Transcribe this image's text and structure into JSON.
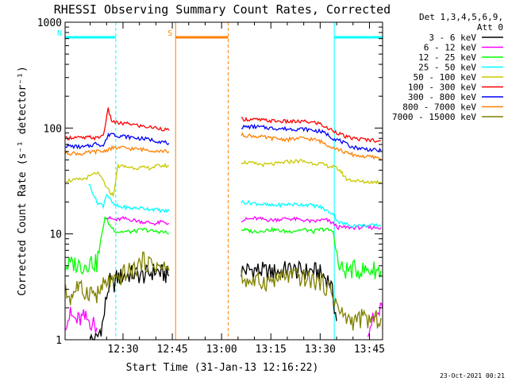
{
  "chart_data": {
    "type": "line",
    "title": "RHESSI Observing Summary Count Rates, Corrected",
    "xlabel": "Start Time (31-Jan-13 12:16:22)",
    "ylabel": "Corrected Count Rate (s⁻¹ detector⁻¹)",
    "yscale": "log",
    "ylim": [
      1,
      1000
    ],
    "xlim_minutes": [
      12.37,
      109.0
    ],
    "x_ticks": [
      {
        "label": "12:30",
        "minutes": 30
      },
      {
        "label": "12:45",
        "minutes": 45
      },
      {
        "label": "13:00",
        "minutes": 60
      },
      {
        "label": "13:15",
        "minutes": 75
      },
      {
        "label": "13:30",
        "minutes": 90
      },
      {
        "label": "13:45",
        "minutes": 105
      }
    ],
    "y_ticks": [
      {
        "label": "1",
        "value": 1
      },
      {
        "label": "10",
        "value": 10
      },
      {
        "label": "100",
        "value": 100
      },
      {
        "label": "1000",
        "value": 1000
      }
    ],
    "legend_header": [
      "Det 1,3,4,5,6,9,",
      "Att 0"
    ],
    "legend_position": "right",
    "grid": false,
    "flags": [
      {
        "label": "N",
        "color": "#00ffff",
        "start": 12.37,
        "end": 27.8
      },
      {
        "label": "",
        "color": "#00ffff",
        "start": 94.3,
        "end": 109.0
      },
      {
        "label": "S",
        "color": "#ff8000",
        "start": 46.0,
        "end": 62.0
      }
    ],
    "markers": [
      {
        "minute": 12.37,
        "color": "#00ffff",
        "style": "solid"
      },
      {
        "minute": 27.8,
        "color": "#00ffff",
        "style": "dashed"
      },
      {
        "minute": 46.0,
        "color": "#ff8000",
        "style": "solid"
      },
      {
        "minute": 62.0,
        "color": "#ff8000",
        "style": "dashed"
      },
      {
        "minute": 94.3,
        "color": "#00ffff",
        "style": "solid"
      },
      {
        "minute": 109.0,
        "color": "#00ffff",
        "style": "dashed"
      }
    ],
    "series": [
      {
        "name": "3 - 6 keV",
        "color": "#000000",
        "segments": [
          {
            "x": [
              20,
              22,
              24,
              25,
              26,
              27,
              28,
              30,
              33,
              36,
              40,
              42,
              44
            ],
            "y": [
              1,
              1,
              1.5,
              2.6,
              3.5,
              3.2,
              3.8,
              4,
              4.2,
              4,
              4.5,
              4.2,
              4
            ]
          },
          {
            "x": [
              66,
              70,
              75,
              80,
              85,
              88,
              90,
              92,
              93,
              94,
              95
            ],
            "y": [
              4.5,
              4.6,
              4.3,
              4.6,
              4.4,
              4.5,
              4.2,
              3.8,
              3.5,
              2.5,
              1.5
            ]
          }
        ]
      },
      {
        "name": "6 - 12 keV",
        "color": "#ff00ff",
        "segments": [
          {
            "x": [
              12.5,
              14,
              16,
              18,
              20,
              21,
              22
            ],
            "y": [
              1.5,
              1.7,
              1.5,
              1.6,
              1.5,
              1.4,
              1.3
            ]
          },
          {
            "x": [
              24.5,
              26,
              28,
              30,
              33,
              36,
              40,
              42,
              44
            ],
            "y": [
              14.5,
              14,
              13.5,
              14,
              13.5,
              13,
              12.5,
              13,
              12.5
            ]
          },
          {
            "x": [
              66,
              70,
              75,
              80,
              85,
              88,
              90,
              92,
              94,
              95.5,
              97,
              100,
              103,
              106,
              108.5
            ],
            "y": [
              13.5,
              14,
              13.5,
              14,
              13.5,
              13,
              13.5,
              13.5,
              12.5,
              11.5,
              11.5,
              11.5,
              11.5,
              11.5,
              11.5
            ]
          },
          {
            "x": [
              104.5,
              106,
              108,
              109
            ],
            "y": [
              1.3,
              1.5,
              1.8,
              2
            ]
          }
        ]
      },
      {
        "name": "12 - 25 keV",
        "color": "#00ff00",
        "segments": [
          {
            "x": [
              12.5,
              15,
              18,
              20,
              22,
              24.5,
              26,
              28,
              30,
              33,
              36,
              40,
              42,
              44
            ],
            "y": [
              5,
              5.2,
              5,
              5.5,
              5.2,
              14.5,
              12,
              10.5,
              10.5,
              10.5,
              11,
              10.5,
              10.5,
              10
            ]
          },
          {
            "x": [
              66,
              70,
              75,
              80,
              85,
              88,
              90,
              92,
              94,
              95.5,
              97,
              100,
              103,
              106,
              108.5
            ],
            "y": [
              11,
              10.5,
              11,
              10.5,
              11,
              10.5,
              11,
              11,
              10.5,
              5,
              4.5,
              4.6,
              4.5,
              4.6,
              4.5
            ]
          }
        ]
      },
      {
        "name": "25 - 50 keV",
        "color": "#00ffff",
        "segments": [
          {
            "x": [
              19.5,
              21,
              22,
              24,
              25,
              27,
              29,
              33,
              36,
              40,
              42,
              44
            ],
            "y": [
              30,
              24,
              20,
              18.5,
              24,
              19,
              18,
              17.5,
              17.5,
              17,
              16.5,
              16.5
            ]
          },
          {
            "x": [
              66,
              70,
              75,
              80,
              85,
              88,
              90,
              92,
              94,
              95.5,
              97,
              100,
              103,
              106,
              108.5
            ],
            "y": [
              20,
              19.5,
              18.5,
              19,
              19,
              18.5,
              18,
              16.5,
              15.5,
              13,
              12.5,
              12,
              12,
              12,
              12
            ]
          }
        ]
      },
      {
        "name": "50 - 100 keV",
        "color": "#c8c800",
        "segments": [
          {
            "x": [
              12.5,
              15,
              18,
              20,
              22,
              24,
              25,
              27,
              28.5,
              31,
              35,
              38,
              41,
              44
            ],
            "y": [
              32,
              32,
              33,
              35,
              38,
              32,
              27,
              23,
              44,
              43,
              42,
              42,
              44,
              44
            ]
          },
          {
            "x": [
              66,
              70,
              73,
              77,
              80,
              84,
              87,
              90,
              92,
              94,
              96,
              98,
              100,
              103,
              106,
              108.5
            ],
            "y": [
              48,
              46,
              45,
              46,
              48,
              49,
              47,
              46,
              44,
              43,
              40,
              33,
              32,
              31,
              31,
              31
            ]
          }
        ]
      },
      {
        "name": "100 - 300 keV",
        "color": "#ff0000",
        "segments": [
          {
            "x": [
              12.5,
              15,
              18,
              20,
              22,
              24,
              25.5,
              26.5,
              28,
              30,
              32,
              35,
              38,
              41,
              44
            ],
            "y": [
              80,
              82,
              80,
              82,
              80,
              86,
              150,
              118,
              112,
              110,
              110,
              105,
              102,
              100,
              95
            ]
          },
          {
            "x": [
              66,
              70,
              75,
              80,
              85,
              88,
              90,
              92,
              94,
              96,
              98,
              100,
              103,
              106,
              108.5
            ],
            "y": [
              122,
              120,
              117,
              115,
              115,
              113,
              110,
              100,
              95,
              88,
              82,
              80,
              78,
              77,
              76
            ]
          }
        ]
      },
      {
        "name": "300 - 800 keV",
        "color": "#0000ff",
        "segments": [
          {
            "x": [
              12.5,
              15,
              18,
              20,
              22,
              24,
              25.5,
              26.5,
              28,
              30,
              32,
              35,
              38,
              41,
              44
            ],
            "y": [
              68,
              67,
              66,
              68,
              72,
              68,
              85,
              90,
              85,
              84,
              82,
              80,
              78,
              75,
              72
            ]
          },
          {
            "x": [
              66,
              70,
              75,
              80,
              85,
              88,
              90,
              92,
              94,
              96,
              98,
              100,
              103,
              106,
              108.5
            ],
            "y": [
              102,
              103,
              100,
              98,
              98,
              95,
              93,
              88,
              80,
              76,
              70,
              66,
              64,
              62,
              61
            ]
          }
        ]
      },
      {
        "name": "800 - 7000 keV",
        "color": "#ff8000",
        "segments": [
          {
            "x": [
              12.5,
              15,
              18,
              20,
              22,
              24,
              26,
              28,
              30,
              32,
              35,
              38,
              41,
              44
            ],
            "y": [
              58,
              58,
              57,
              59,
              60,
              60,
              64,
              65,
              65,
              64,
              63,
              62,
              61,
              60
            ]
          },
          {
            "x": [
              66,
              70,
              75,
              80,
              85,
              88,
              90,
              92,
              94,
              96,
              98,
              100,
              103,
              106,
              108.5
            ],
            "y": [
              86,
              84,
              80,
              78,
              80,
              78,
              75,
              70,
              66,
              62,
              58,
              56,
              54,
              53,
              52
            ]
          }
        ]
      },
      {
        "name": "7000 - 15000 keV",
        "color": "#808000",
        "segments": [
          {
            "x": [
              12.5,
              14,
              16,
              18,
              20,
              22,
              24,
              26,
              28,
              30,
              33,
              36,
              40,
              44
            ],
            "y": [
              2.8,
              2.5,
              3.2,
              2.8,
              2.9,
              2.6,
              3.2,
              3.6,
              3.4,
              4.2,
              4.5,
              5.5,
              5,
              4.5
            ]
          },
          {
            "x": [
              66,
              70,
              75,
              80,
              85,
              90,
              93,
              95,
              96,
              98,
              100,
              103,
              106,
              108.5
            ],
            "y": [
              3.8,
              3.5,
              3.6,
              4,
              3.8,
              3.5,
              3,
              2.2,
              1.8,
              1.6,
              1.5,
              1.6,
              1.5,
              1.6
            ]
          }
        ]
      }
    ]
  },
  "footer": {
    "timestamp": "23-Oct-2021 00:21"
  }
}
